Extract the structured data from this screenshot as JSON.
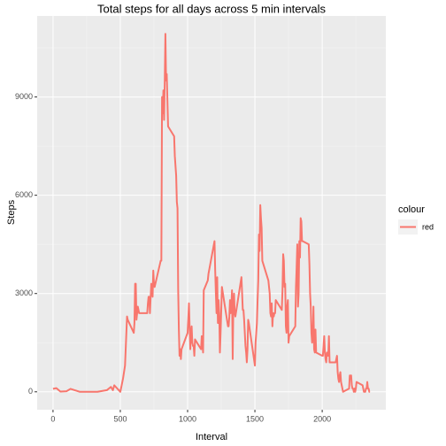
{
  "chart_data": {
    "type": "line",
    "title": "Total steps for all days across 5 min intervals",
    "x_label": "Interval",
    "y_label": "Steps",
    "legend_title": "colour",
    "legend": "right",
    "grid": true,
    "x": [
      0,
      25,
      55,
      100,
      130,
      200,
      255,
      300,
      330,
      400,
      430,
      445,
      455,
      500,
      520,
      535,
      550,
      555,
      600,
      605,
      610,
      615,
      620,
      630,
      640,
      700,
      705,
      710,
      715,
      720,
      730,
      740,
      745,
      750,
      755,
      800,
      805,
      810,
      815,
      820,
      825,
      830,
      835,
      840,
      845,
      850,
      855,
      900,
      905,
      910,
      915,
      920,
      925,
      930,
      935,
      940,
      945,
      950,
      955,
      1000,
      1005,
      1010,
      1015,
      1020,
      1025,
      1030,
      1035,
      1040,
      1045,
      1050,
      1055,
      1100,
      1105,
      1110,
      1115,
      1120,
      1150,
      1155,
      1200,
      1205,
      1210,
      1215,
      1220,
      1225,
      1230,
      1235,
      1240,
      1245,
      1250,
      1255,
      1300,
      1305,
      1310,
      1315,
      1320,
      1325,
      1330,
      1335,
      1340,
      1345,
      1350,
      1355,
      1400,
      1405,
      1410,
      1415,
      1420,
      1425,
      1430,
      1435,
      1440,
      1445,
      1450,
      1455,
      1500,
      1505,
      1510,
      1515,
      1520,
      1525,
      1530,
      1535,
      1540,
      1545,
      1550,
      1555,
      1600,
      1605,
      1610,
      1615,
      1620,
      1625,
      1630,
      1635,
      1640,
      1645,
      1650,
      1655,
      1700,
      1705,
      1710,
      1715,
      1720,
      1725,
      1730,
      1735,
      1740,
      1745,
      1750,
      1755,
      1800,
      1805,
      1810,
      1815,
      1820,
      1825,
      1830,
      1835,
      1840,
      1845,
      1850,
      1855,
      1900,
      1905,
      1910,
      1915,
      1920,
      1925,
      1930,
      1935,
      1940,
      1945,
      1950,
      1955,
      2000,
      2005,
      2010,
      2015,
      2020,
      2025,
      2030,
      2035,
      2040,
      2045,
      2050,
      2055,
      2100,
      2105,
      2110,
      2115,
      2120,
      2125,
      2130,
      2135,
      2140,
      2145,
      2150,
      2155,
      2200,
      2205,
      2210,
      2215,
      2220,
      2225,
      2230,
      2235,
      2240,
      2245,
      2250,
      2255,
      2300,
      2305,
      2310,
      2315,
      2320,
      2325,
      2330,
      2335,
      2340,
      2345,
      2350,
      2355
    ],
    "series": [
      {
        "name": "red",
        "color": "#F8766D",
        "values": [
          91,
          111,
          7,
          17,
          90,
          0,
          0,
          0,
          0,
          50,
          150,
          50,
          200,
          0,
          400,
          800,
          2300,
          2200,
          1800,
          2100,
          3300,
          3300,
          2200,
          2600,
          2400,
          2400,
          2700,
          2900,
          2900,
          2400,
          3300,
          2900,
          3700,
          3300,
          3200,
          4000,
          4000,
          9000,
          8500,
          9200,
          8300,
          9400,
          10927,
          9500,
          9700,
          8900,
          8100,
          7800,
          7200,
          6900,
          6600,
          5800,
          5600,
          3100,
          1900,
          1100,
          1300,
          1000,
          1300,
          1800,
          2200,
          2700,
          2000,
          1300,
          1800,
          2000,
          1500,
          1400,
          1400,
          1100,
          1600,
          1300,
          1700,
          1500,
          1200,
          3100,
          3400,
          3600,
          4600,
          3700,
          3000,
          2400,
          3500,
          2100,
          2800,
          2400,
          1200,
          1800,
          2500,
          3200,
          2000,
          2000,
          2300,
          2800,
          2400,
          2600,
          3100,
          1000,
          2700,
          3000,
          2400,
          2300,
          3500,
          3000,
          2500,
          2500,
          2200,
          1800,
          1400,
          1200,
          900,
          1300,
          2200,
          2100,
          800,
          1500,
          1800,
          2100,
          2800,
          3400,
          4800,
          4300,
          5700,
          5300,
          5000,
          4000,
          3400,
          3200,
          3000,
          2400,
          2300,
          2700,
          2000,
          2400,
          2300,
          2400,
          2400,
          2800,
          2500,
          3100,
          4200,
          4000,
          3200,
          3300,
          2000,
          1800,
          2600,
          2800,
          1500,
          1700,
          2000,
          3200,
          3800,
          4500,
          2600,
          3000,
          4600,
          4100,
          5300,
          5200,
          4600,
          4600,
          4500,
          3900,
          3000,
          2600,
          1800,
          1500,
          1700,
          2600,
          1300,
          1200,
          1900,
          1200,
          1100,
          1100,
          1400,
          1700,
          1200,
          1000,
          900,
          1200,
          1100,
          1100,
          1700,
          900,
          900,
          1000,
          1100,
          600,
          400,
          300,
          500,
          600,
          300,
          200,
          100,
          0,
          100,
          500,
          400,
          500,
          200,
          100,
          100,
          0,
          100,
          0,
          100,
          300,
          200,
          100,
          0,
          0,
          0,
          100,
          100,
          300,
          100,
          100,
          0,
          0
        ]
      }
    ],
    "xlim": [
      -117.75,
      2472.75
    ],
    "xticks": [
      0,
      500,
      1000,
      1500,
      2000
    ],
    "x_minor_ticks": [
      250,
      750,
      1250,
      1750,
      2250
    ],
    "ylim": [
      -546.35,
      11473.35
    ],
    "yticks": [
      0,
      3000,
      6000,
      9000
    ],
    "y_minor_ticks": [
      1500,
      4500,
      7500,
      10500
    ]
  }
}
